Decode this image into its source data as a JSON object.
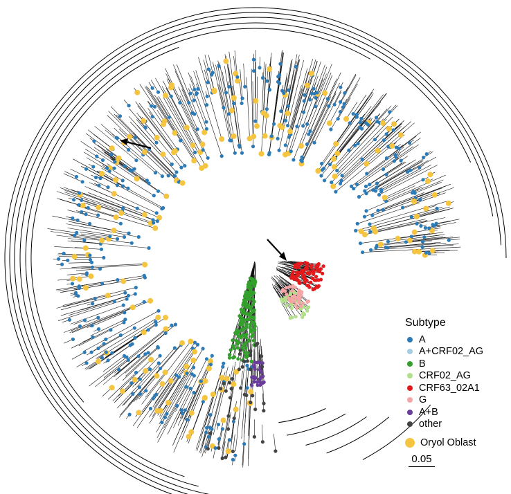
{
  "legend": {
    "title": "Subtype",
    "items": [
      {
        "label": "A",
        "color": "#2c7bb6"
      },
      {
        "label": "A+CRF02_AG",
        "color": "#a6cee3"
      },
      {
        "label": "B",
        "color": "#33a02c"
      },
      {
        "label": "CRF02_AG",
        "color": "#b2df8a"
      },
      {
        "label": "CRF63_02A1",
        "color": "#e31a1c"
      },
      {
        "label": "G",
        "color": "#f4a6a6"
      },
      {
        "label": "A+B",
        "color": "#6a3d9a"
      },
      {
        "label": "other",
        "color": "#444444"
      }
    ],
    "region": {
      "label": "Oryol Oblast",
      "color": "#f5c542"
    }
  },
  "scale_bar": {
    "label": "0.05"
  }
}
